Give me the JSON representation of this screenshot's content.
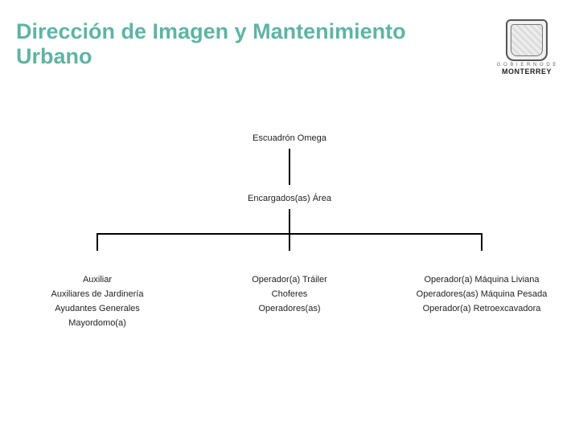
{
  "header": {
    "title": "Dirección de Imagen y Mantenimiento Urbano",
    "logo_caption": "G O B I E R N O   D E",
    "logo_city": "MONTERREY"
  },
  "org": {
    "root": "Escuadrón Omega",
    "level2": "Encargados(as) Área",
    "columns": [
      {
        "items": [
          "Auxiliar",
          "Auxiliares de Jardinería",
          "Ayudantes Generales",
          "Mayordomo(a)"
        ]
      },
      {
        "items": [
          "Operador(a) Tráiler",
          "Choferes",
          "Operadores(as)"
        ]
      },
      {
        "items": [
          "Operador(a) Máquina Liviana",
          "Operadores(as) Máquina Pesada",
          "Operador(a) Retroexcavadora"
        ]
      }
    ]
  },
  "style": {
    "title_color": "#5fb4a4",
    "line_color": "#000000",
    "background": "#ffffff",
    "title_fontsize": 27,
    "node_fontsize": 11
  }
}
